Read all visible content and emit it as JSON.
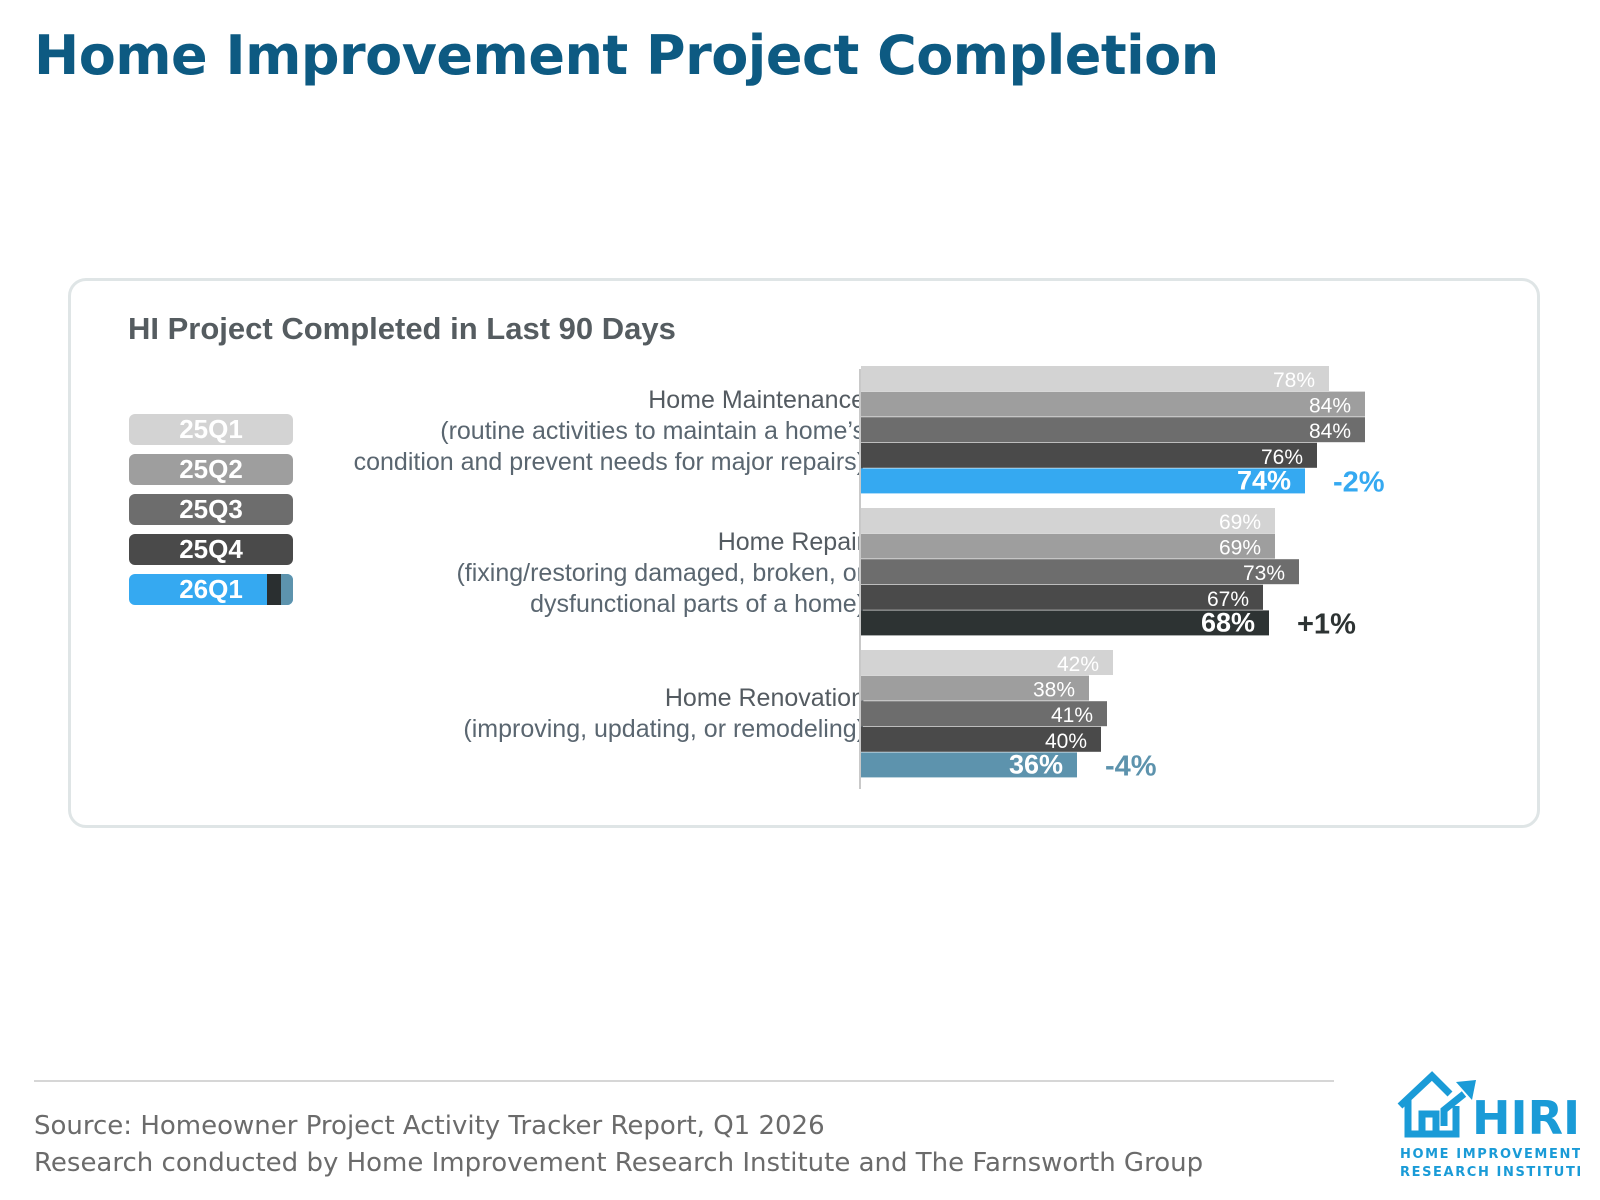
{
  "page": {
    "title": "Home Improvement Project Completion"
  },
  "footer": {
    "source": "Source: Homeowner Project Activity Tracker Report, Q1 2026",
    "credit": "Research conducted by Home Improvement Research Institute and The Farnsworth Group"
  },
  "logo": {
    "wordmark": "HIRI",
    "line1": "HOME IMPROVEMENT",
    "line2": "RESEARCH INSTITUTE",
    "icon": "house-with-rising-arrow-icon",
    "color": "#1a9bd7"
  },
  "chart_data": {
    "type": "bar",
    "orientation": "horizontal",
    "title": "HI Project Completed in Last 90 Days",
    "categories": [
      {
        "name": "Home Maintenance",
        "desc1": "(routine activities to maintain a home’s",
        "desc2": "condition and prevent needs for major repairs)"
      },
      {
        "name": "Home Repair",
        "desc1": "(fixing/restoring damaged, broken, or",
        "desc2": "dysfunctional parts of a home)"
      },
      {
        "name": "Home Renovation",
        "desc1": "(improving, updating, or remodeling)",
        "desc2": ""
      }
    ],
    "series": [
      {
        "name": "25Q1",
        "values": [
          78,
          69,
          42
        ],
        "labels": [
          "78%",
          "69%",
          "42%"
        ],
        "color": "#d3d3d3"
      },
      {
        "name": "25Q2",
        "values": [
          84,
          69,
          38
        ],
        "labels": [
          "84%",
          "69%",
          "38%"
        ],
        "color": "#9e9e9e"
      },
      {
        "name": "25Q3",
        "values": [
          84,
          73,
          41
        ],
        "labels": [
          "84%",
          "73%",
          "41%"
        ],
        "color": "#6d6d6d"
      },
      {
        "name": "25Q4",
        "values": [
          76,
          67,
          40
        ],
        "labels": [
          "76%",
          "67%",
          "40%"
        ],
        "color": "#4a4a4a"
      },
      {
        "name": "26Q1",
        "values": [
          74,
          68,
          36
        ],
        "labels": [
          "74%",
          "68%",
          "36%"
        ],
        "colors": [
          "#35a9f1",
          "#2d3333",
          "#5d93ad"
        ]
      }
    ],
    "changes": [
      {
        "label": "-2%",
        "color": "#35a9f1"
      },
      {
        "label": "+1%",
        "color": "#2d3333"
      },
      {
        "label": "-4%",
        "color": "#5d93ad"
      }
    ],
    "xlim": [
      0,
      100
    ],
    "legend": "left",
    "grid": false
  }
}
